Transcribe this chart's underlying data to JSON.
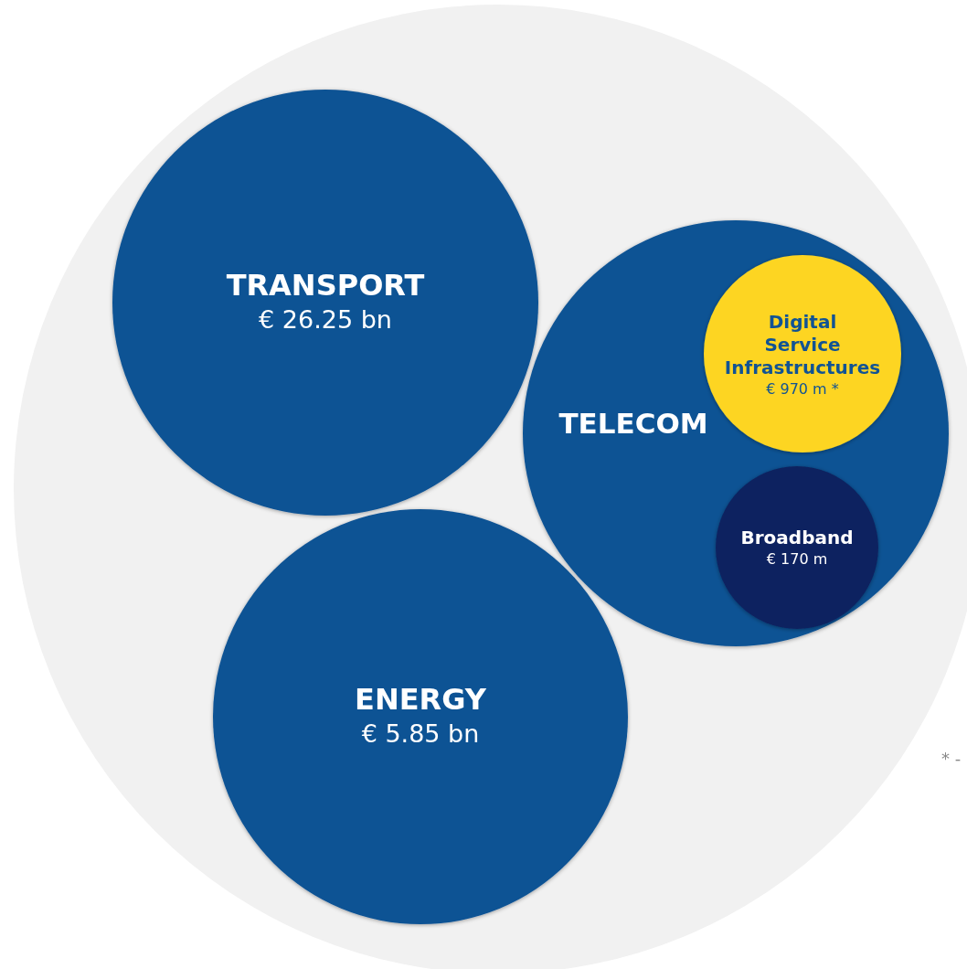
{
  "chart_data": {
    "type": "other",
    "categories": [
      "TRANSPORT",
      "ENERGY",
      "TELECOM",
      "Digital Service Infrastructures",
      "Broadband"
    ],
    "values": [
      26.25,
      5.85,
      null,
      970,
      170
    ],
    "value_labels": [
      "€ 26.25 bn",
      "€ 5.85 bn",
      null,
      "€ 970 m *",
      "€ 170 m"
    ],
    "colors": [
      "#115394",
      "#115394",
      "#115394",
      "#fdd523",
      "#0d2360"
    ],
    "annotations": [
      "* -"
    ]
  }
}
